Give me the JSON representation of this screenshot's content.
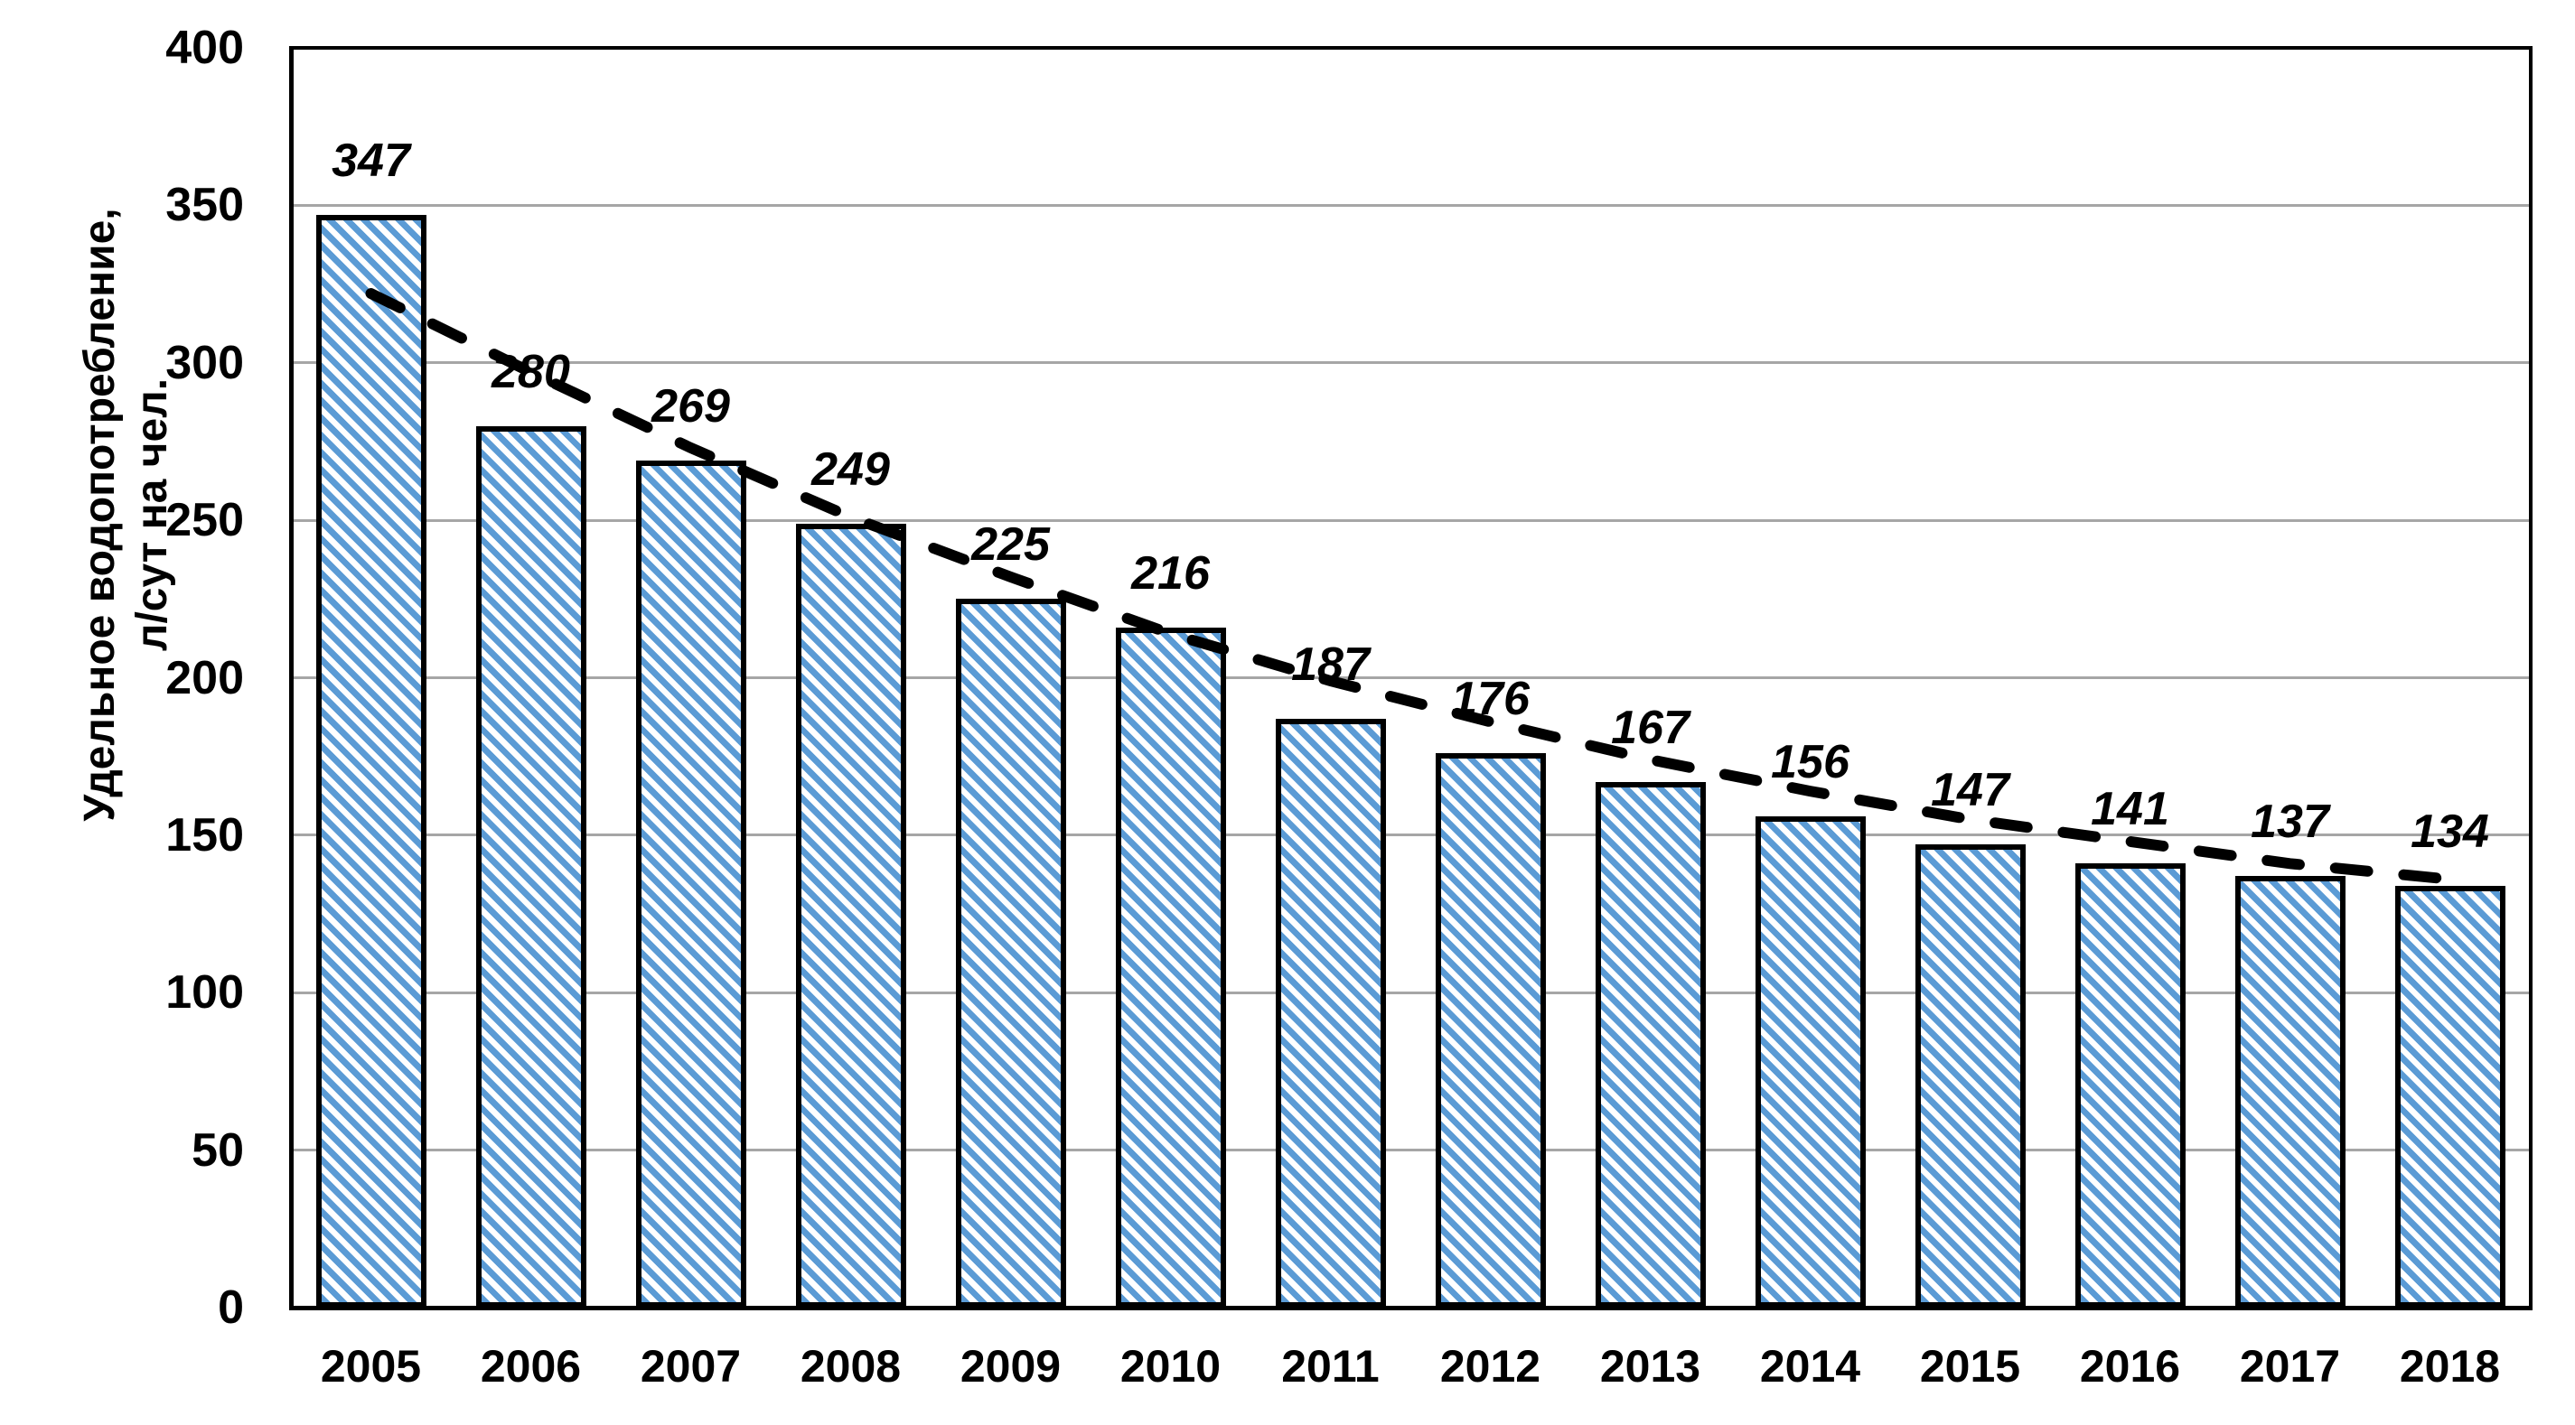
{
  "chart_data": {
    "type": "bar",
    "title": "",
    "ylabel_line1": "Удельное водопотребление,",
    "ylabel_line2": "л/сут на чел.",
    "xlabel": "",
    "categories": [
      "2005",
      "2006",
      "2007",
      "2008",
      "2009",
      "2010",
      "2011",
      "2012",
      "2013",
      "2014",
      "2015",
      "2016",
      "2017",
      "2018"
    ],
    "values": [
      347,
      280,
      269,
      249,
      225,
      216,
      187,
      176,
      167,
      156,
      147,
      141,
      137,
      134
    ],
    "data_label_style": "bold-italic",
    "y_ticks": [
      0,
      50,
      100,
      150,
      200,
      250,
      300,
      350,
      400
    ],
    "ylim": [
      0,
      400
    ],
    "grid": "horizontal-gray-lines",
    "legend": "none",
    "colors": {
      "bar_hatch_stripe": "#5B9BD5",
      "bar_fill_background": "#FFFFFF",
      "bar_border": "#000000",
      "gridline": "#A6A6A6",
      "axis_and_text": "#000000",
      "trendline": "#000000"
    },
    "bar_hatch_direction": "diagonal-descending",
    "trendline": {
      "style": "dashed",
      "shape": "smooth-decreasing-curve",
      "values_at_categories": [
        322,
        297,
        273,
        251,
        232,
        214,
        199,
        186,
        174,
        164,
        155,
        148,
        141,
        136
      ]
    }
  }
}
